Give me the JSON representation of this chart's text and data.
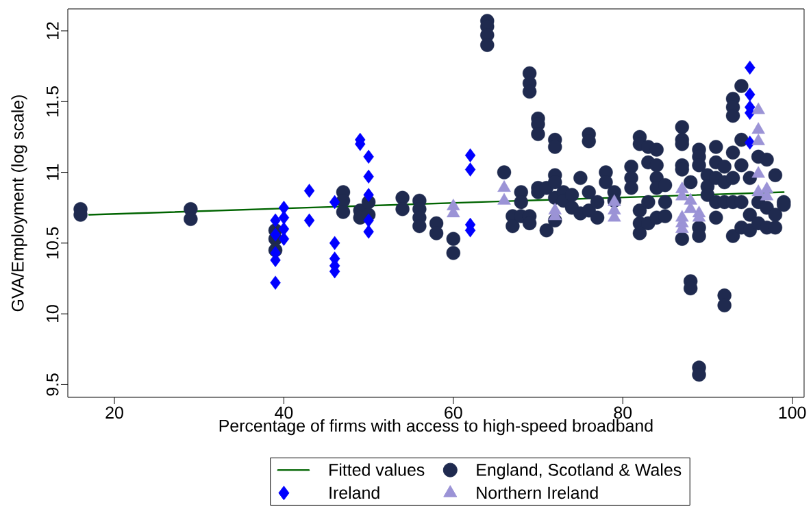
{
  "chart_data": {
    "type": "scatter",
    "xlabel": "Percentage of firms with access to high-speed broadband",
    "ylabel": "GVA/Employment (log scale)",
    "xlim": [
      14.5,
      101.4
    ],
    "ylim": [
      9.41,
      12.155
    ],
    "xticks": [
      20,
      40,
      60,
      80,
      100
    ],
    "yticks": [
      9.5,
      10,
      10.5,
      11,
      11.5,
      12
    ],
    "legend": "bottom",
    "grid": false,
    "series": [
      {
        "name": "Fitted values",
        "type": "line",
        "marker": "none",
        "color": "#006400",
        "x": [
          17,
          99
        ],
        "values": [
          10.7,
          10.86
        ]
      },
      {
        "name": "England, Scotland & Wales",
        "marker": "circle",
        "color": "#1f2a4f",
        "x": [
          16,
          16,
          29,
          29,
          39,
          39,
          39,
          47,
          47,
          47,
          49,
          49,
          50,
          50,
          54,
          54,
          56,
          56,
          56,
          56,
          58,
          58,
          60,
          60,
          64,
          64,
          64,
          64,
          66,
          67,
          67,
          68,
          68,
          68,
          69,
          69,
          69,
          69,
          69,
          70,
          70,
          70,
          70,
          70,
          71,
          71,
          72,
          72,
          72,
          72,
          72,
          72,
          73,
          73,
          74,
          74,
          75,
          75,
          76,
          76,
          76,
          76,
          77,
          77,
          78,
          78,
          79,
          79,
          81,
          81,
          81,
          82,
          82,
          82,
          82,
          82,
          83,
          83,
          83,
          83,
          84,
          84,
          84,
          84,
          84,
          85,
          85,
          85,
          87,
          87,
          87,
          87,
          87,
          87,
          88,
          88,
          88,
          89,
          89,
          89,
          89,
          89,
          89,
          89,
          90,
          90,
          90,
          91,
          91,
          91,
          91,
          91,
          92,
          92,
          92,
          92,
          92,
          93,
          93,
          93,
          93,
          93,
          93,
          93,
          94,
          94,
          94,
          94,
          94,
          95,
          95,
          95,
          96,
          96,
          96,
          97,
          97,
          97,
          98,
          98,
          98,
          99,
          99
        ],
        "values": [
          10.74,
          10.7,
          10.74,
          10.67,
          10.59,
          10.53,
          10.45,
          10.86,
          10.8,
          10.72,
          10.73,
          10.68,
          10.79,
          10.7,
          10.82,
          10.74,
          10.8,
          10.74,
          10.68,
          10.62,
          10.64,
          10.57,
          10.53,
          10.43,
          12.07,
          12.03,
          11.97,
          11.9,
          11.0,
          10.69,
          10.62,
          10.86,
          10.79,
          10.69,
          11.7,
          11.63,
          11.57,
          10.69,
          10.64,
          11.38,
          11.34,
          11.27,
          10.89,
          10.86,
          10.89,
          10.59,
          11.23,
          11.18,
          10.98,
          10.93,
          10.82,
          10.66,
          10.86,
          10.8,
          10.84,
          10.75,
          10.96,
          10.71,
          11.27,
          11.22,
          10.86,
          10.73,
          10.79,
          10.68,
          11.0,
          10.93,
          10.86,
          10.8,
          11.04,
          10.96,
          10.89,
          11.25,
          11.2,
          10.73,
          10.64,
          10.57,
          11.18,
          11.07,
          10.79,
          10.64,
          11.16,
          11.05,
          10.96,
          10.89,
          10.68,
          10.91,
          10.79,
          10.69,
          11.32,
          11.23,
          11.2,
          11.05,
          11.02,
          10.53,
          10.93,
          10.23,
          10.18,
          11.16,
          11.11,
          11.05,
          10.61,
          10.55,
          9.62,
          9.57,
          10.98,
          10.9,
          10.84,
          11.18,
          11.07,
          10.96,
          10.79,
          10.68,
          11.04,
          10.93,
          10.79,
          10.13,
          10.06,
          11.52,
          11.46,
          11.4,
          11.14,
          10.96,
          10.79,
          10.55,
          11.61,
          11.23,
          11.05,
          10.79,
          10.61,
          10.96,
          10.7,
          10.59,
          11.11,
          10.79,
          10.64,
          11.09,
          10.75,
          10.61,
          10.98,
          10.7,
          10.61,
          10.79,
          10.77
        ]
      },
      {
        "name": "Ireland",
        "marker": "diamond",
        "color": "#0000ff",
        "x": [
          39,
          39,
          39,
          39,
          39,
          40,
          40,
          40,
          40,
          43,
          43,
          46,
          46,
          46,
          46,
          46,
          49,
          49,
          50,
          50,
          50,
          50,
          50,
          62,
          62,
          62,
          62,
          95,
          95,
          95,
          95,
          95
        ],
        "values": [
          10.66,
          10.56,
          10.43,
          10.38,
          10.22,
          10.75,
          10.68,
          10.6,
          10.53,
          10.87,
          10.66,
          10.79,
          10.5,
          10.39,
          10.34,
          10.3,
          11.23,
          11.2,
          11.11,
          10.97,
          10.84,
          10.66,
          10.58,
          11.12,
          11.02,
          10.63,
          10.59,
          11.74,
          11.55,
          11.46,
          11.42,
          11.21
        ]
      },
      {
        "name": "Northern Ireland",
        "marker": "triangle",
        "color": "#9b93d6",
        "x": [
          60,
          60,
          66,
          66,
          72,
          72,
          79,
          79,
          79,
          87,
          87,
          87,
          87,
          87,
          88,
          88,
          89,
          89,
          96,
          96,
          96,
          96,
          96,
          97,
          97
        ],
        "values": [
          10.76,
          10.71,
          10.89,
          10.8,
          10.73,
          10.69,
          10.79,
          10.73,
          10.68,
          10.88,
          10.83,
          10.68,
          10.64,
          10.6,
          10.8,
          10.74,
          10.71,
          10.68,
          11.44,
          11.3,
          11.22,
          10.99,
          10.86,
          10.88,
          10.83
        ]
      }
    ]
  }
}
